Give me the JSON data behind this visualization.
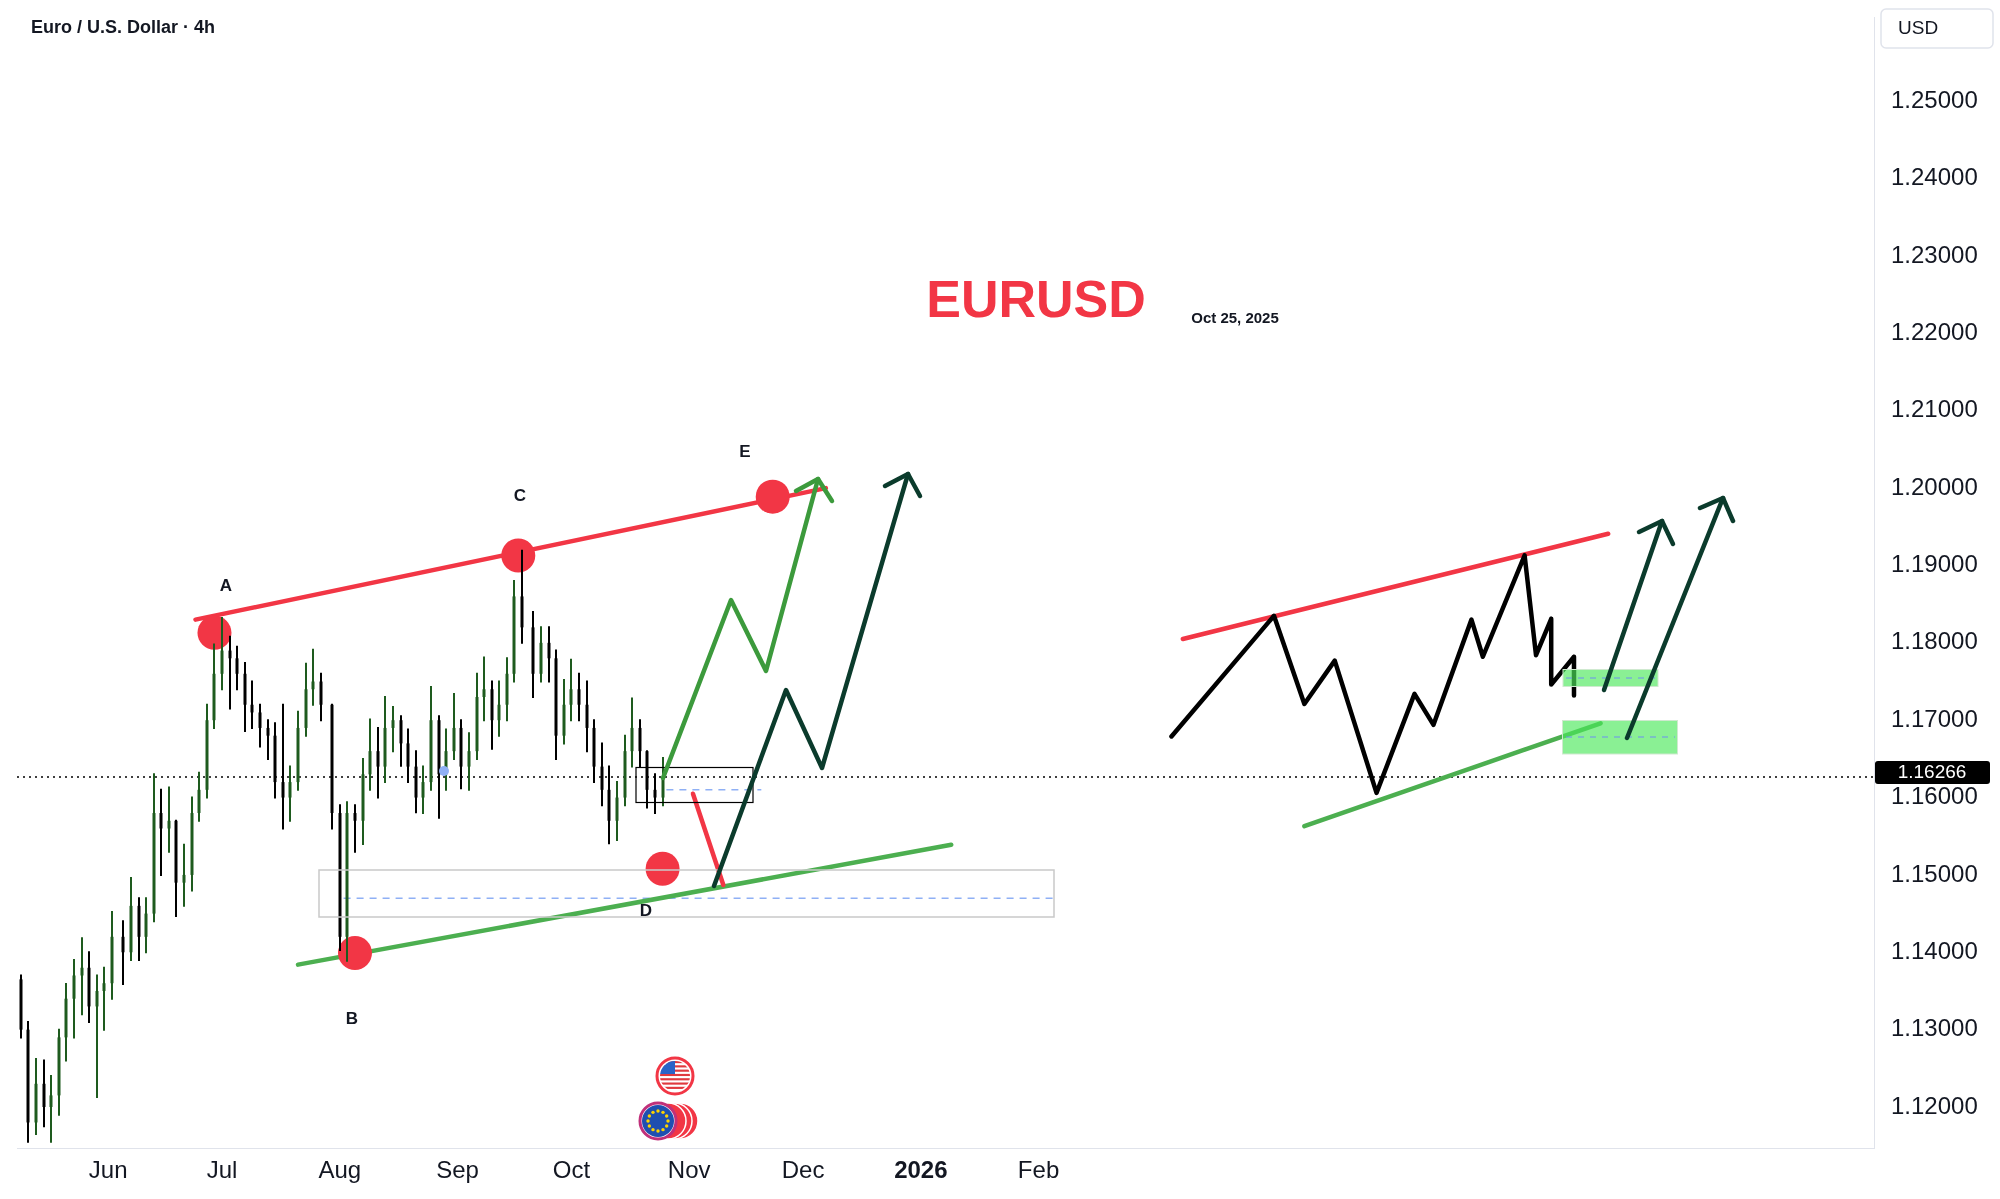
{
  "chart_data": {
    "type": "candlestick",
    "title": "Euro / U.S. Dollar · 4h",
    "subtitle": "EURUSD",
    "ylabel": "USD",
    "annotations": [
      "Oct 25, 2025",
      "A",
      "B",
      "C",
      "D",
      "E"
    ],
    "xlim": [
      "2025-05-08",
      "2026-09-09"
    ],
    "xticks": [
      {
        "value": "2025-06-01",
        "label": "Jun"
      },
      {
        "value": "2025-07-01",
        "label": "Jul"
      },
      {
        "value": "2025-08-01",
        "label": "Aug"
      },
      {
        "value": "2025-09-01",
        "label": "Sep"
      },
      {
        "value": "2025-10-01",
        "label": "Oct"
      },
      {
        "value": "2025-11-01",
        "label": "Nov"
      },
      {
        "value": "2025-12-01",
        "label": "Dec"
      },
      {
        "value": "2026-01-01",
        "label": "2026"
      },
      {
        "value": "2026-02-01",
        "label": "Feb"
      }
    ],
    "ylim": [
      1.1147,
      1.2609
    ],
    "yticks": [
      {
        "value": 1.12,
        "label": "1.12000"
      },
      {
        "value": 1.13,
        "label": "1.13000"
      },
      {
        "value": 1.14,
        "label": "1.14000"
      },
      {
        "value": 1.15,
        "label": "1.15000"
      },
      {
        "value": 1.16,
        "label": "1.16000"
      },
      {
        "value": 1.17,
        "label": "1.17000"
      },
      {
        "value": 1.18,
        "label": "1.18000"
      },
      {
        "value": 1.19,
        "label": "1.19000"
      },
      {
        "value": 1.2,
        "label": "1.20000"
      },
      {
        "value": 1.21,
        "label": "1.21000"
      },
      {
        "value": 1.22,
        "label": "1.22000"
      },
      {
        "value": 1.23,
        "label": "1.23000"
      },
      {
        "value": 1.24,
        "label": "1.24000"
      },
      {
        "value": 1.25,
        "label": "1.25000"
      }
    ],
    "grid": false,
    "legend": false,
    "ref_lines": [
      {
        "axis": "y",
        "value": 1.16266,
        "label": "1.16266",
        "line_style": "dotted",
        "color": "#000000"
      }
    ],
    "series": [
      {
        "x": [
          "2025-05-09",
          "2025-05-11",
          "2025-05-13",
          "2025-05-15",
          "2025-05-17",
          "2025-05-19",
          "2025-05-21",
          "2025-05-23",
          "2025-05-25",
          "2025-05-27",
          "2025-05-29",
          "2025-05-31",
          "2025-06-02",
          "2025-06-05",
          "2025-06-07",
          "2025-06-09",
          "2025-06-11",
          "2025-06-13",
          "2025-06-15",
          "2025-06-17",
          "2025-06-19",
          "2025-06-21",
          "2025-06-23",
          "2025-06-25",
          "2025-06-27",
          "2025-06-29",
          "2025-07-01",
          "2025-07-03",
          "2025-07-05",
          "2025-07-07",
          "2025-07-09",
          "2025-07-11",
          "2025-07-13",
          "2025-07-15",
          "2025-07-17",
          "2025-07-19",
          "2025-07-21",
          "2025-07-23",
          "2025-07-25",
          "2025-07-27",
          "2025-07-30",
          "2025-08-01",
          "2025-08-03",
          "2025-08-05",
          "2025-08-07",
          "2025-08-09",
          "2025-08-11",
          "2025-08-13",
          "2025-08-15",
          "2025-08-17",
          "2025-08-19",
          "2025-08-21",
          "2025-08-23",
          "2025-08-25",
          "2025-08-27",
          "2025-08-29",
          "2025-08-31",
          "2025-09-02",
          "2025-09-04",
          "2025-09-06",
          "2025-09-08",
          "2025-09-10",
          "2025-09-12",
          "2025-09-14",
          "2025-09-16",
          "2025-09-18",
          "2025-09-21",
          "2025-09-23",
          "2025-09-25",
          "2025-09-27",
          "2025-09-29",
          "2025-10-01",
          "2025-10-03",
          "2025-10-05",
          "2025-10-07",
          "2025-10-09",
          "2025-10-11",
          "2025-10-13",
          "2025-10-15",
          "2025-10-17",
          "2025-10-19",
          "2025-10-21",
          "2025-10-23",
          "2025-10-25"
        ],
        "ohlc": [
          [
            1.1365,
            1.137,
            1.129,
            1.13
          ],
          [
            1.13,
            1.131,
            1.1155,
            1.118
          ],
          [
            1.118,
            1.1262,
            1.1165,
            1.123
          ],
          [
            1.123,
            1.126,
            1.1175,
            1.12
          ],
          [
            1.12,
            1.124,
            1.1155,
            1.1215
          ],
          [
            1.1215,
            1.13,
            1.119,
            1.129
          ],
          [
            1.129,
            1.1359,
            1.126,
            1.134
          ],
          [
            1.134,
            1.139,
            1.129,
            1.137
          ],
          [
            1.137,
            1.1418,
            1.132,
            1.138
          ],
          [
            1.138,
            1.14,
            1.131,
            1.133
          ],
          [
            1.133,
            1.137,
            1.1213,
            1.135
          ],
          [
            1.135,
            1.138,
            1.13,
            1.136
          ],
          [
            1.136,
            1.1452,
            1.134,
            1.142
          ],
          [
            1.142,
            1.144,
            1.1359,
            1.14
          ],
          [
            1.14,
            1.1496,
            1.139,
            1.146
          ],
          [
            1.146,
            1.147,
            1.139,
            1.142
          ],
          [
            1.142,
            1.147,
            1.14,
            1.145
          ],
          [
            1.145,
            1.163,
            1.144,
            1.158
          ],
          [
            1.158,
            1.161,
            1.15,
            1.156
          ],
          [
            1.156,
            1.1613,
            1.153,
            1.157
          ],
          [
            1.157,
            1.157,
            1.1447,
            1.149
          ],
          [
            1.149,
            1.1539,
            1.146,
            1.15
          ],
          [
            1.15,
            1.16,
            1.148,
            1.158
          ],
          [
            1.158,
            1.1632,
            1.157,
            1.161
          ],
          [
            1.161,
            1.172,
            1.16,
            1.17
          ],
          [
            1.17,
            1.1798,
            1.169,
            1.176
          ],
          [
            1.176,
            1.1832,
            1.174,
            1.179
          ],
          [
            1.179,
            1.1808,
            1.1715,
            1.178
          ],
          [
            1.178,
            1.1795,
            1.174,
            1.176
          ],
          [
            1.176,
            1.1774,
            1.1686,
            1.172
          ],
          [
            1.172,
            1.175,
            1.169,
            1.171
          ],
          [
            1.171,
            1.172,
            1.1666,
            1.169
          ],
          [
            1.169,
            1.17,
            1.165,
            1.168
          ],
          [
            1.168,
            1.1696,
            1.16,
            1.162
          ],
          [
            1.162,
            1.172,
            1.156,
            1.16
          ],
          [
            1.16,
            1.164,
            1.157,
            1.162
          ],
          [
            1.162,
            1.1711,
            1.161,
            1.169
          ],
          [
            1.169,
            1.1773,
            1.168,
            1.174
          ],
          [
            1.174,
            1.1791,
            1.172,
            1.175
          ],
          [
            1.175,
            1.176,
            1.17,
            1.172
          ],
          [
            1.172,
            1.172,
            1.156,
            1.158
          ],
          [
            1.158,
            1.159,
            1.1403,
            1.142
          ],
          [
            1.142,
            1.1594,
            1.1389,
            1.158
          ],
          [
            1.158,
            1.159,
            1.153,
            1.157
          ],
          [
            1.157,
            1.165,
            1.154,
            1.163
          ],
          [
            1.163,
            1.1701,
            1.161,
            1.166
          ],
          [
            1.166,
            1.169,
            1.16,
            1.164
          ],
          [
            1.164,
            1.173,
            1.162,
            1.169
          ],
          [
            1.169,
            1.1717,
            1.166,
            1.17
          ],
          [
            1.17,
            1.1705,
            1.1641,
            1.167
          ],
          [
            1.167,
            1.1688,
            1.162,
            1.164
          ],
          [
            1.164,
            1.166,
            1.1581,
            1.16
          ],
          [
            1.16,
            1.164,
            1.158,
            1.162
          ],
          [
            1.162,
            1.1743,
            1.161,
            1.17
          ],
          [
            1.17,
            1.1705,
            1.1574,
            1.163
          ],
          [
            1.163,
            1.1688,
            1.161,
            1.166
          ],
          [
            1.166,
            1.1734,
            1.165,
            1.169
          ],
          [
            1.169,
            1.17,
            1.1612,
            1.164
          ],
          [
            1.164,
            1.1683,
            1.161,
            1.166
          ],
          [
            1.166,
            1.176,
            1.165,
            1.173
          ],
          [
            1.173,
            1.1781,
            1.17,
            1.174
          ],
          [
            1.174,
            1.175,
            1.1663,
            1.17
          ],
          [
            1.17,
            1.175,
            1.168,
            1.172
          ],
          [
            1.172,
            1.178,
            1.17,
            1.176
          ],
          [
            1.176,
            1.188,
            1.175,
            1.186
          ],
          [
            1.186,
            1.1919,
            1.18,
            1.182
          ],
          [
            1.182,
            1.184,
            1.173,
            1.176
          ],
          [
            1.176,
            1.182,
            1.175,
            1.18
          ],
          [
            1.18,
            1.182,
            1.175,
            1.178
          ],
          [
            1.178,
            1.179,
            1.165,
            1.168
          ],
          [
            1.168,
            1.1752,
            1.167,
            1.172
          ],
          [
            1.172,
            1.1778,
            1.17,
            1.174
          ],
          [
            1.174,
            1.176,
            1.17,
            1.172
          ],
          [
            1.172,
            1.175,
            1.166,
            1.169
          ],
          [
            1.169,
            1.17,
            1.162,
            1.164
          ],
          [
            1.164,
            1.167,
            1.159,
            1.161
          ],
          [
            1.161,
            1.164,
            1.1541,
            1.157
          ],
          [
            1.157,
            1.162,
            1.1545,
            1.16
          ],
          [
            1.16,
            1.168,
            1.159,
            1.166
          ],
          [
            1.166,
            1.1728,
            1.164,
            1.169
          ],
          [
            1.169,
            1.17,
            1.164,
            1.166
          ],
          [
            1.166,
            1.166,
            1.1587,
            1.161
          ],
          [
            1.161,
            1.163,
            1.158,
            1.16
          ],
          [
            1.16,
            1.1651,
            1.159,
            1.16266
          ]
        ],
        "colors": [
          "#000000",
          "#000000",
          "#1e5b1e",
          "#000000",
          "#1e5b1e",
          "#1e5b1e",
          "#1e5b1e",
          "#1e5b1e",
          "#1e5b1e",
          "#000000",
          "#1e5b1e",
          "#1e5b1e",
          "#1e5b1e",
          "#000000",
          "#1e5b1e",
          "#000000",
          "#1e5b1e",
          "#1e5b1e",
          "#000000",
          "#1e5b1e",
          "#000000",
          "#1e5b1e",
          "#1e5b1e",
          "#1e5b1e",
          "#1e5b1e",
          "#1e5b1e",
          "#1e5b1e",
          "#000000",
          "#000000",
          "#000000",
          "#000000",
          "#000000",
          "#000000",
          "#000000",
          "#000000",
          "#1e5b1e",
          "#1e5b1e",
          "#1e5b1e",
          "#1e5b1e",
          "#000000",
          "#000000",
          "#000000",
          "#1e5b1e",
          "#000000",
          "#1e5b1e",
          "#1e5b1e",
          "#000000",
          "#1e5b1e",
          "#1e5b1e",
          "#000000",
          "#000000",
          "#000000",
          "#1e5b1e",
          "#1e5b1e",
          "#000000",
          "#1e5b1e",
          "#1e5b1e",
          "#000000",
          "#1e5b1e",
          "#1e5b1e",
          "#1e5b1e",
          "#000000",
          "#1e5b1e",
          "#1e5b1e",
          "#1e5b1e",
          "#000000",
          "#000000",
          "#1e5b1e",
          "#000000",
          "#000000",
          "#1e5b1e",
          "#1e5b1e",
          "#000000",
          "#000000",
          "#000000",
          "#000000",
          "#000000",
          "#1e5b1e",
          "#1e5b1e",
          "#1e5b1e",
          "#000000",
          "#000000",
          "#000000",
          "#1e5b1e"
        ]
      },
      {
        "type": "line",
        "color": "#8fb0f5",
        "line_style": "dashed",
        "x": [
          "2025-08-02",
          "2026-02-05"
        ],
        "values": [
          1.147,
          1.147
        ]
      },
      {
        "type": "line",
        "color": "#8fb0f5",
        "line_style": "dashed",
        "x": [
          "2025-10-26",
          "2025-11-20"
        ],
        "values": [
          1.161,
          1.161
        ]
      },
      {
        "type": "scatter",
        "marker": "circle",
        "color": "#f23645",
        "x": [
          "2025-06-29",
          "2025-08-05",
          "2025-09-17",
          "2025-10-25",
          "2025-11-23"
        ],
        "values": [
          1.1813,
          1.1399,
          1.1913,
          1.1508,
          1.1989
        ]
      },
      {
        "type": "line",
        "color": "#f23645",
        "x": [
          "2025-06-24",
          "2025-12-07"
        ],
        "values": [
          1.183,
          1.2
        ]
      },
      {
        "type": "line",
        "color": "#4caf50",
        "x": [
          "2025-07-21",
          "2026-01-09"
        ],
        "values": [
          1.1384,
          1.1539
        ]
      },
      {
        "type": "line",
        "color": "#f23645",
        "x": [
          "2025-11-02",
          "2025-11-10"
        ],
        "values": [
          1.1605,
          1.1487
        ]
      },
      {
        "type": "line",
        "color": "#f23645",
        "x": [
          "2026-03-11",
          "2026-07-01"
        ],
        "values": [
          1.1805,
          1.1941
        ]
      },
      {
        "type": "line",
        "color": "#4caf50",
        "x": [
          "2026-04-12",
          "2026-06-29"
        ],
        "values": [
          1.1563,
          1.1696
        ]
      },
      {
        "type": "line",
        "color": "#000000",
        "x": [
          "2026-03-08",
          "2026-04-04",
          "2026-04-12",
          "2026-04-20",
          "2026-05-01",
          "2026-05-11",
          "2026-05-16",
          "2026-05-26",
          "2026-05-29",
          "2026-06-09",
          "2026-06-12",
          "2026-06-16",
          "2026-06-16",
          "2026-06-22",
          "2026-06-22"
        ],
        "values": [
          1.1679,
          1.1835,
          1.1721,
          1.1777,
          1.1606,
          1.1734,
          1.1694,
          1.183,
          1.1782,
          1.1913,
          1.1784,
          1.1831,
          1.1746,
          1.1782,
          1.1732
        ]
      }
    ]
  }
}
